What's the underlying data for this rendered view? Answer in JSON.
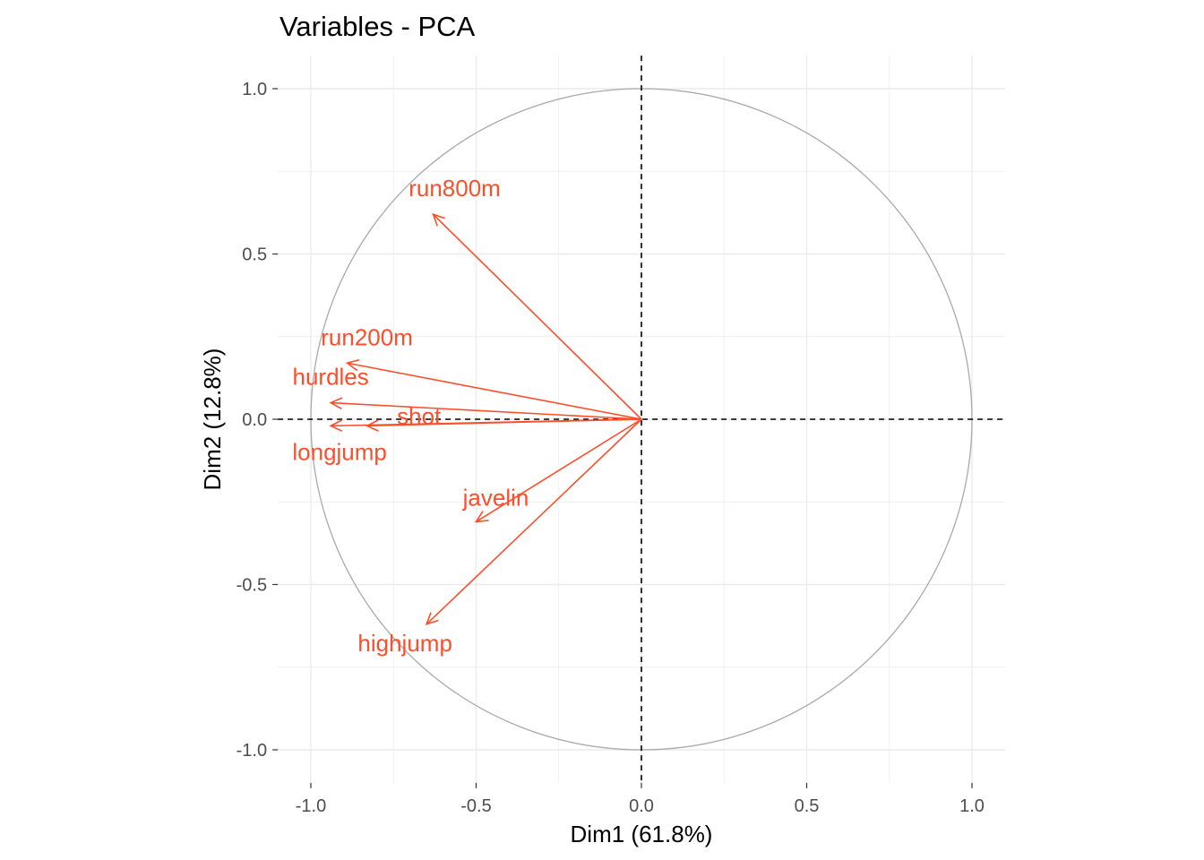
{
  "chart_data": {
    "type": "scatter",
    "subtype": "pca-variables-correlation-circle",
    "title": "Variables - PCA",
    "xlabel": "Dim1 (61.8%)",
    "ylabel": "Dim2 (12.8%)",
    "xlim": [
      -1.1,
      1.1
    ],
    "ylim": [
      -1.1,
      1.1
    ],
    "xticks": [
      -1.0,
      -0.5,
      0.0,
      0.5,
      1.0
    ],
    "yticks": [
      -1.0,
      -0.5,
      0.0,
      0.5,
      1.0
    ],
    "xtick_labels": [
      "-1.0",
      "-0.5",
      "0.0",
      "0.5",
      "1.0"
    ],
    "ytick_labels": [
      "-1.0",
      "-0.5",
      "0.0",
      "0.5",
      "1.0"
    ],
    "grid": true,
    "unit_circle": true,
    "reference_lines": "dashed at x=0 and y=0",
    "arrow_color": "#FC4E2A",
    "circle_color": "#A9A9A9",
    "variables": [
      {
        "name": "run800m",
        "x": -0.63,
        "y": 0.62
      },
      {
        "name": "run200m",
        "x": -0.89,
        "y": 0.17
      },
      {
        "name": "hurdles",
        "x": -0.94,
        "y": 0.05
      },
      {
        "name": "shot",
        "x": -0.83,
        "y": -0.02
      },
      {
        "name": "longjump",
        "x": -0.94,
        "y": -0.02
      },
      {
        "name": "javelin",
        "x": -0.5,
        "y": -0.31
      },
      {
        "name": "highjump",
        "x": -0.65,
        "y": -0.62
      }
    ]
  }
}
